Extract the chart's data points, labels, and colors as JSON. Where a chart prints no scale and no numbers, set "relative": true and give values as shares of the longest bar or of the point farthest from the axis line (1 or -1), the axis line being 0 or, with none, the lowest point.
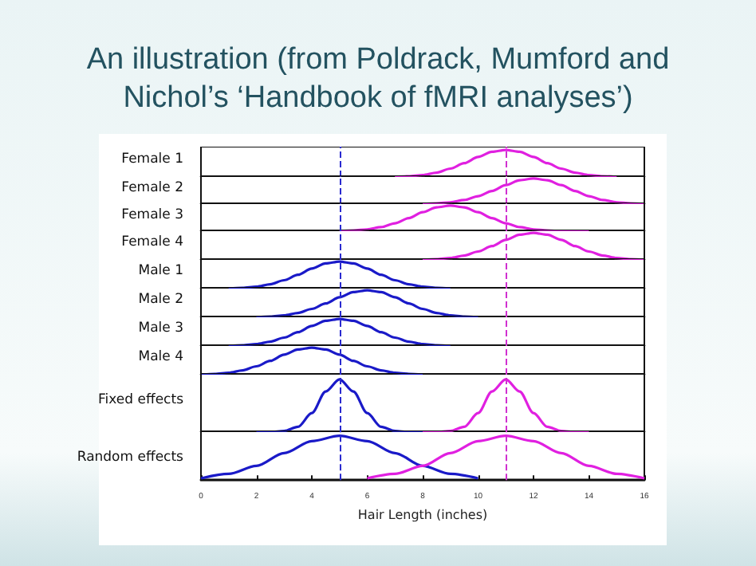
{
  "chart_data": [
    {
      "type": "line",
      "title": "An illustration (from Poldrack, Mumford and Nichol’s ‘Handbook of fMRI analyses’)",
      "ylabel": "Female 1",
      "relative": true,
      "xlim": [
        0,
        16
      ],
      "tick_labels": false,
      "marker": "none",
      "grid": false,
      "ref_lines": [
        {
          "axis": "x",
          "value": 5,
          "color": "#2a2ad0",
          "line_style": "dashed"
        },
        {
          "axis": "x",
          "value": 11,
          "color": "#d030d0",
          "line_style": "dashed"
        }
      ],
      "series": [
        {
          "color": "#e020e0",
          "x": [
            7,
            7.5,
            8,
            8.5,
            9,
            9.5,
            10,
            10.5,
            11,
            11.5,
            12,
            12.5,
            13,
            13.5,
            14,
            14.5,
            15
          ],
          "values": [
            0,
            0.03,
            0.07,
            0.16,
            0.31,
            0.51,
            0.74,
            0.93,
            1,
            0.93,
            0.74,
            0.51,
            0.31,
            0.16,
            0.07,
            0.03,
            0
          ]
        }
      ]
    },
    {
      "type": "line",
      "ylabel": "Female 2",
      "relative": true,
      "xlim": [
        0,
        16
      ],
      "tick_labels": false,
      "marker": "none",
      "grid": false,
      "ref_lines": [
        {
          "axis": "x",
          "value": 5,
          "color": "#2a2ad0",
          "line_style": "dashed"
        },
        {
          "axis": "x",
          "value": 11,
          "color": "#d030d0",
          "line_style": "dashed"
        }
      ],
      "series": [
        {
          "color": "#e020e0",
          "x": [
            8,
            8.5,
            9,
            9.5,
            10,
            10.5,
            11,
            11.5,
            12,
            12.5,
            13,
            13.5,
            14,
            14.5,
            15,
            15.5,
            16
          ],
          "values": [
            0,
            0.03,
            0.07,
            0.16,
            0.31,
            0.51,
            0.74,
            0.93,
            1,
            0.93,
            0.74,
            0.51,
            0.31,
            0.16,
            0.07,
            0.03,
            0
          ]
        }
      ]
    },
    {
      "type": "line",
      "ylabel": "Female 3",
      "relative": true,
      "xlim": [
        0,
        16
      ],
      "tick_labels": false,
      "marker": "none",
      "grid": false,
      "ref_lines": [
        {
          "axis": "x",
          "value": 5,
          "color": "#2a2ad0",
          "line_style": "dashed"
        },
        {
          "axis": "x",
          "value": 11,
          "color": "#d030d0",
          "line_style": "dashed"
        }
      ],
      "series": [
        {
          "color": "#e020e0",
          "x": [
            5,
            5.5,
            6,
            6.5,
            7,
            7.5,
            8,
            8.5,
            9,
            9.5,
            10,
            10.5,
            11,
            11.5,
            12,
            12.5,
            13,
            14
          ],
          "values": [
            0,
            0.03,
            0.07,
            0.16,
            0.31,
            0.51,
            0.74,
            0.93,
            1,
            0.93,
            0.74,
            0.51,
            0.31,
            0.16,
            0.07,
            0.03,
            0,
            0
          ]
        }
      ]
    },
    {
      "type": "line",
      "ylabel": "Female 4",
      "relative": true,
      "xlim": [
        0,
        16
      ],
      "tick_labels": false,
      "marker": "none",
      "grid": false,
      "ref_lines": [
        {
          "axis": "x",
          "value": 5,
          "color": "#2a2ad0",
          "line_style": "dashed"
        },
        {
          "axis": "x",
          "value": 11,
          "color": "#d030d0",
          "line_style": "dashed"
        }
      ],
      "series": [
        {
          "color": "#e020e0",
          "x": [
            8,
            8.5,
            9,
            9.5,
            10,
            10.5,
            11,
            11.5,
            12,
            12.5,
            13,
            13.5,
            14,
            14.5,
            15,
            15.5,
            16
          ],
          "values": [
            0,
            0.03,
            0.07,
            0.16,
            0.31,
            0.51,
            0.74,
            0.93,
            1,
            0.93,
            0.74,
            0.51,
            0.31,
            0.16,
            0.07,
            0.03,
            0
          ]
        }
      ]
    },
    {
      "type": "line",
      "ylabel": "Male 1",
      "relative": true,
      "xlim": [
        0,
        16
      ],
      "tick_labels": false,
      "marker": "none",
      "grid": false,
      "ref_lines": [
        {
          "axis": "x",
          "value": 5,
          "color": "#2a2ad0",
          "line_style": "dashed"
        },
        {
          "axis": "x",
          "value": 11,
          "color": "#d030d0",
          "line_style": "dashed"
        }
      ],
      "series": [
        {
          "color": "#1a1ac8",
          "x": [
            1,
            1.5,
            2,
            2.5,
            3,
            3.5,
            4,
            4.5,
            5,
            5.5,
            6,
            6.5,
            7,
            7.5,
            8,
            8.5,
            9
          ],
          "values": [
            0,
            0.03,
            0.07,
            0.16,
            0.31,
            0.51,
            0.74,
            0.93,
            1,
            0.93,
            0.74,
            0.51,
            0.31,
            0.16,
            0.07,
            0.03,
            0
          ]
        }
      ]
    },
    {
      "type": "line",
      "ylabel": "Male 2",
      "relative": true,
      "xlim": [
        0,
        16
      ],
      "tick_labels": false,
      "marker": "none",
      "grid": false,
      "ref_lines": [
        {
          "axis": "x",
          "value": 5,
          "color": "#2a2ad0",
          "line_style": "dashed"
        },
        {
          "axis": "x",
          "value": 11,
          "color": "#d030d0",
          "line_style": "dashed"
        }
      ],
      "series": [
        {
          "color": "#1a1ac8",
          "x": [
            2,
            2.5,
            3,
            3.5,
            4,
            4.5,
            5,
            5.5,
            6,
            6.5,
            7,
            7.5,
            8,
            8.5,
            9,
            9.5,
            10
          ],
          "values": [
            0,
            0.03,
            0.07,
            0.16,
            0.31,
            0.51,
            0.74,
            0.93,
            1,
            0.93,
            0.74,
            0.51,
            0.31,
            0.16,
            0.07,
            0.03,
            0
          ]
        }
      ]
    },
    {
      "type": "line",
      "ylabel": "Male 3",
      "relative": true,
      "xlim": [
        0,
        16
      ],
      "tick_labels": false,
      "marker": "none",
      "grid": false,
      "ref_lines": [
        {
          "axis": "x",
          "value": 5,
          "color": "#2a2ad0",
          "line_style": "dashed"
        },
        {
          "axis": "x",
          "value": 11,
          "color": "#d030d0",
          "line_style": "dashed"
        }
      ],
      "series": [
        {
          "color": "#1a1ac8",
          "x": [
            1,
            1.5,
            2,
            2.5,
            3,
            3.5,
            4,
            4.5,
            5,
            5.5,
            6,
            6.5,
            7,
            7.5,
            8,
            8.5,
            9
          ],
          "values": [
            0,
            0.03,
            0.07,
            0.16,
            0.31,
            0.51,
            0.74,
            0.93,
            1,
            0.93,
            0.74,
            0.51,
            0.31,
            0.16,
            0.07,
            0.03,
            0
          ]
        }
      ]
    },
    {
      "type": "line",
      "ylabel": "Male 4",
      "relative": true,
      "xlim": [
        0,
        16
      ],
      "tick_labels": false,
      "marker": "none",
      "grid": false,
      "ref_lines": [
        {
          "axis": "x",
          "value": 5,
          "color": "#2a2ad0",
          "line_style": "dashed"
        },
        {
          "axis": "x",
          "value": 11,
          "color": "#d030d0",
          "line_style": "dashed"
        }
      ],
      "series": [
        {
          "color": "#1a1ac8",
          "x": [
            0,
            0.5,
            1,
            1.5,
            2,
            2.5,
            3,
            3.5,
            4,
            4.5,
            5,
            5.5,
            6,
            6.5,
            7,
            7.5,
            8
          ],
          "values": [
            0,
            0.03,
            0.07,
            0.16,
            0.31,
            0.51,
            0.74,
            0.93,
            1,
            0.93,
            0.74,
            0.51,
            0.31,
            0.16,
            0.07,
            0.03,
            0
          ]
        }
      ]
    },
    {
      "type": "line",
      "ylabel": "Fixed effects",
      "relative": true,
      "xlim": [
        0,
        16
      ],
      "tick_labels": false,
      "marker": "none",
      "grid": false,
      "ref_lines": [
        {
          "axis": "x",
          "value": 5,
          "color": "#2a2ad0",
          "line_style": "dashed"
        },
        {
          "axis": "x",
          "value": 11,
          "color": "#d030d0",
          "line_style": "dashed"
        }
      ],
      "series": [
        {
          "color": "#1a1ac8",
          "x": [
            2,
            2.5,
            3,
            3.5,
            4,
            4.5,
            5,
            5.5,
            6,
            6.5,
            7,
            7.5,
            8
          ],
          "values": [
            0,
            0,
            0.02,
            0.1,
            0.36,
            0.77,
            1,
            0.77,
            0.36,
            0.1,
            0.02,
            0,
            0
          ]
        },
        {
          "color": "#e020e0",
          "x": [
            8,
            8.5,
            9,
            9.5,
            10,
            10.5,
            11,
            11.5,
            12,
            12.5,
            13,
            13.5,
            14
          ],
          "values": [
            0,
            0,
            0.02,
            0.1,
            0.36,
            0.77,
            1,
            0.77,
            0.36,
            0.1,
            0.02,
            0,
            0
          ]
        }
      ]
    },
    {
      "type": "line",
      "ylabel": "Random effects",
      "xlabel": "Hair Length (inches)",
      "relative": true,
      "xlim": [
        0,
        16
      ],
      "xticks": [
        0,
        2,
        4,
        6,
        8,
        10,
        12,
        14,
        16
      ],
      "tick_labels": "x",
      "marker": "none",
      "grid": false,
      "ref_lines": [
        {
          "axis": "x",
          "value": 5,
          "color": "#2a2ad0",
          "line_style": "dashed"
        },
        {
          "axis": "x",
          "value": 11,
          "color": "#d030d0",
          "line_style": "dashed"
        }
      ],
      "series": [
        {
          "color": "#1a1ac8",
          "x": [
            0,
            1,
            2,
            3,
            4,
            5,
            6,
            7,
            8,
            9,
            10
          ],
          "values": [
            0.04,
            0.14,
            0.32,
            0.61,
            0.88,
            1,
            0.88,
            0.61,
            0.32,
            0.14,
            0.04
          ]
        },
        {
          "color": "#e020e0",
          "x": [
            6,
            7,
            8,
            9,
            10,
            11,
            12,
            13,
            14,
            15,
            16
          ],
          "values": [
            0.04,
            0.14,
            0.32,
            0.61,
            0.88,
            1,
            0.88,
            0.61,
            0.32,
            0.14,
            0.04
          ]
        }
      ]
    }
  ]
}
